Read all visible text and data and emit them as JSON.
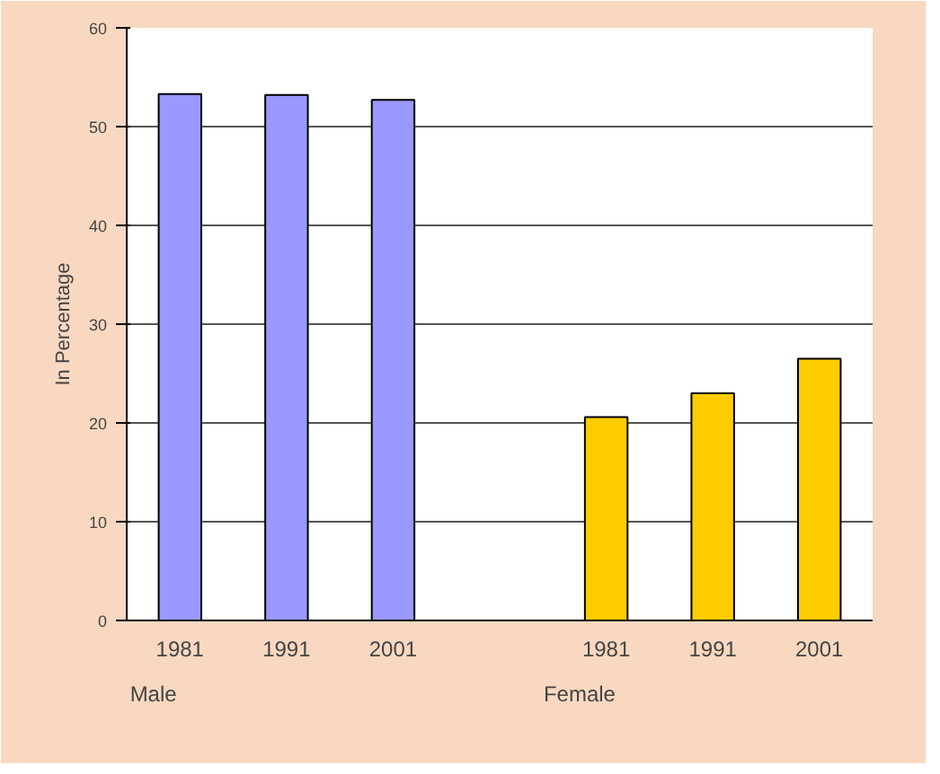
{
  "chart_data": {
    "type": "bar",
    "ylabel": "In Percentage",
    "categories": [
      "1981",
      "1991",
      "2001",
      null,
      "1981",
      "1991",
      "2001"
    ],
    "values": [
      53.3,
      53.2,
      52.7,
      null,
      20.6,
      23,
      26.5
    ],
    "colors": [
      "#9999ff",
      "#9999ff",
      "#9999ff",
      null,
      "#ffcc00",
      "#ffcc00",
      "#ffcc00"
    ],
    "ylim": [
      0,
      60
    ],
    "yticks": [
      0,
      10,
      20,
      30,
      40,
      50,
      60
    ],
    "grid": "y",
    "annotations": [
      "Male",
      "Female"
    ]
  }
}
